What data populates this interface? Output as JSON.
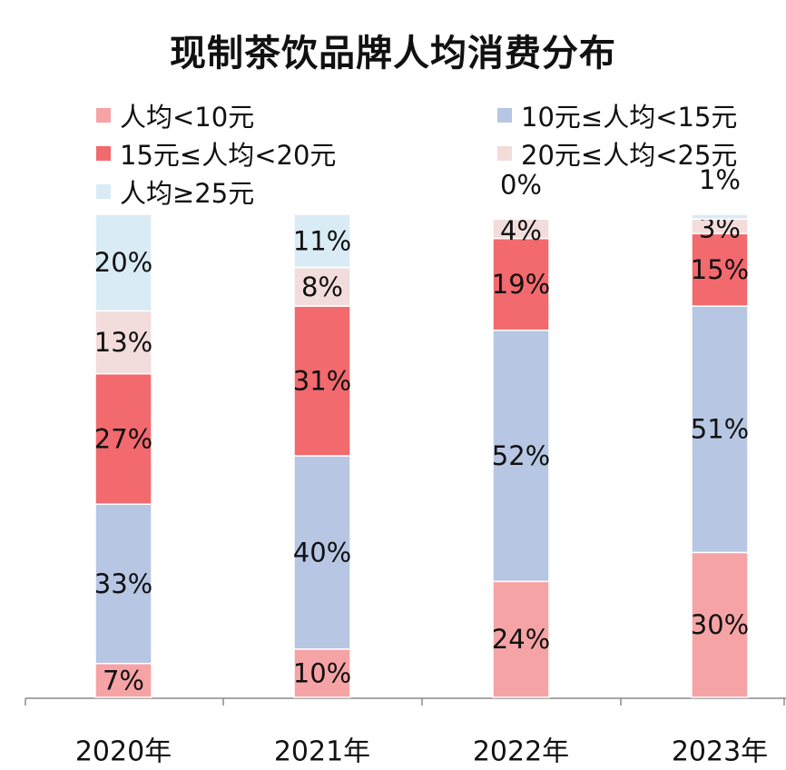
{
  "title": "现制茶饮品牌人均消费分布",
  "chart_data": {
    "type": "bar",
    "stacked": true,
    "title": "现制茶饮品牌人均消费分布",
    "xlabel": "",
    "ylabel": "",
    "ylim": [
      0,
      100
    ],
    "grid": false,
    "legend_position": "top",
    "categories": [
      "2020年",
      "2021年",
      "2022年",
      "2023年"
    ],
    "series": [
      {
        "name": "人均<10元",
        "color": "#f6a3a6",
        "values": [
          7,
          10,
          24,
          30
        ],
        "labels": [
          "7%",
          "10%",
          "24%",
          "30%"
        ]
      },
      {
        "name": "10元≤人均<15元",
        "color": "#b7c6e3",
        "values": [
          33,
          40,
          52,
          51
        ],
        "labels": [
          "33%",
          "40%",
          "52%",
          "51%"
        ]
      },
      {
        "name": "15元≤人均<20元",
        "color": "#f2696e",
        "values": [
          27,
          31,
          19,
          15
        ],
        "labels": [
          "27%",
          "31%",
          "19%",
          "15%"
        ]
      },
      {
        "name": "20元≤人均<25元",
        "color": "#f2dcdc",
        "values": [
          13,
          8,
          4,
          3
        ],
        "labels": [
          "13%",
          "8%",
          "4%",
          "3%"
        ]
      },
      {
        "name": "人均≥25元",
        "color": "#d9ebf5",
        "values": [
          20,
          11,
          0,
          1
        ],
        "labels": [
          "20%",
          "11%",
          "0%",
          "1%"
        ]
      }
    ]
  }
}
